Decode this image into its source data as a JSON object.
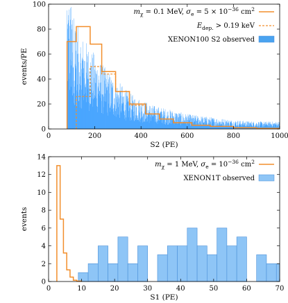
{
  "chart_data": [
    {
      "id": "top",
      "type": "bar",
      "xlabel": "S2 (PE)",
      "ylabel": "events/PE",
      "xlim": [
        0,
        1000
      ],
      "ylim": [
        0,
        100
      ],
      "xticks": [
        0,
        200,
        400,
        600,
        800,
        1000
      ],
      "yticks": [
        0,
        20,
        40,
        60,
        80,
        100
      ],
      "legend_placement": "top-right",
      "legend": [
        {
          "kind": "line",
          "color": "#f28e2b",
          "math": {
            "m": "m",
            "sub": "χ",
            "mid": " = 0.1 MeV,  ",
            "s": "σ",
            "sub2": "e",
            "mid2": " = 5 × 10",
            "sup": "−36",
            "unit": " cm",
            "sup2": "2"
          }
        },
        {
          "kind": "dashed",
          "color": "#f28e2b",
          "math": {
            "m": "E",
            "sub": "dep.",
            "mid": " > 0.19 keV"
          }
        },
        {
          "kind": "fill",
          "color": "#4aa3f0",
          "text": "XENON100 S2 observed"
        }
      ],
      "observed_hist": {
        "color": "#1e90ff",
        "range": [
          80,
          1000
        ],
        "envelope": [
          [
            80,
            95
          ],
          [
            90,
            88
          ],
          [
            100,
            82
          ],
          [
            120,
            70
          ],
          [
            150,
            62
          ],
          [
            200,
            50
          ],
          [
            250,
            40
          ],
          [
            300,
            32
          ],
          [
            350,
            24
          ],
          [
            400,
            20
          ],
          [
            450,
            16
          ],
          [
            500,
            14
          ],
          [
            600,
            10
          ],
          [
            700,
            8
          ],
          [
            800,
            6
          ],
          [
            900,
            5
          ],
          [
            1000,
            5
          ]
        ]
      },
      "model_solid": {
        "color": "#f28e2b",
        "bins": [
          [
            80,
            120,
            70
          ],
          [
            120,
            180,
            82
          ],
          [
            180,
            230,
            68
          ],
          [
            230,
            290,
            46
          ],
          [
            290,
            350,
            30
          ],
          [
            350,
            420,
            20
          ],
          [
            420,
            480,
            12
          ],
          [
            480,
            540,
            8
          ],
          [
            540,
            620,
            5
          ],
          [
            620,
            700,
            3
          ],
          [
            700,
            800,
            2
          ],
          [
            800,
            900,
            1
          ],
          [
            900,
            1000,
            0.5
          ]
        ]
      },
      "model_dashed": {
        "color": "#f28e2b",
        "bins": [
          [
            120,
            150,
            26
          ],
          [
            150,
            180,
            26
          ],
          [
            180,
            230,
            50
          ],
          [
            230,
            290,
            44
          ],
          [
            290,
            350,
            30
          ],
          [
            350,
            420,
            19
          ],
          [
            420,
            480,
            12
          ],
          [
            480,
            540,
            8
          ],
          [
            540,
            620,
            5
          ],
          [
            620,
            700,
            3
          ],
          [
            700,
            800,
            2
          ],
          [
            800,
            900,
            1
          ],
          [
            900,
            1000,
            0.5
          ]
        ]
      }
    },
    {
      "id": "bottom",
      "type": "bar",
      "xlabel": "S1 (PE)",
      "ylabel": "events",
      "xlim": [
        0,
        70
      ],
      "ylim": [
        0,
        14
      ],
      "xticks": [
        0,
        10,
        20,
        30,
        40,
        50,
        60,
        70
      ],
      "yticks": [
        0,
        2,
        4,
        6,
        8,
        10,
        12,
        14
      ],
      "legend_placement": "top-right",
      "legend": [
        {
          "kind": "line",
          "color": "#f28e2b",
          "math": {
            "m": "m",
            "sub": "χ",
            "mid": " = 1 MeV,  ",
            "s": "σ",
            "sub2": "e",
            "mid2": " = 10",
            "sup": "−36",
            "unit": " cm",
            "sup2": "2"
          }
        },
        {
          "kind": "fill",
          "color": "#8ec5f6",
          "text": "XENON1T observed"
        }
      ],
      "observed_bins": {
        "color": "#8ec5f6",
        "edge_color": "#4a90d9",
        "bins": [
          [
            9,
            12,
            1
          ],
          [
            12,
            15,
            2
          ],
          [
            15,
            18,
            4
          ],
          [
            18,
            21,
            2
          ],
          [
            21,
            24,
            5
          ],
          [
            24,
            27,
            2
          ],
          [
            27,
            30,
            4
          ],
          [
            30,
            33,
            0
          ],
          [
            33,
            36,
            3
          ],
          [
            36,
            39,
            4
          ],
          [
            39,
            42,
            4
          ],
          [
            42,
            45,
            6
          ],
          [
            45,
            48,
            4
          ],
          [
            48,
            51,
            3
          ],
          [
            51,
            54,
            6
          ],
          [
            54,
            57,
            4
          ],
          [
            57,
            60,
            5
          ],
          [
            60,
            63,
            0
          ],
          [
            63,
            66,
            3
          ],
          [
            66,
            69,
            2
          ],
          [
            69,
            70,
            2
          ]
        ]
      },
      "model": {
        "color": "#f28e2b",
        "steps": [
          [
            2.5,
            3.5,
            13
          ],
          [
            3.5,
            4.5,
            7
          ],
          [
            4.5,
            5.5,
            3.2
          ],
          [
            5.5,
            6.5,
            1.3
          ],
          [
            6.5,
            7.5,
            0.5
          ],
          [
            7.5,
            8.5,
            0.15
          ],
          [
            8.5,
            10,
            0.05
          ]
        ]
      }
    }
  ]
}
